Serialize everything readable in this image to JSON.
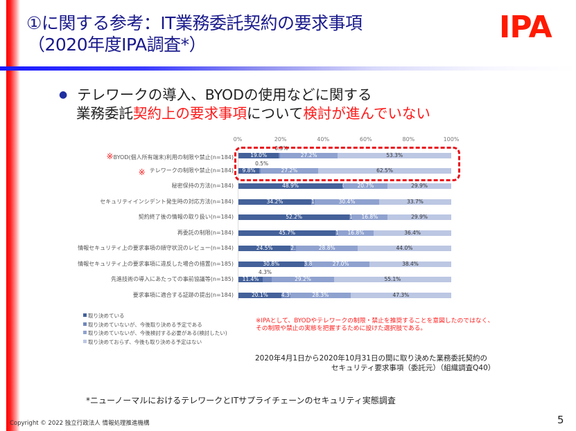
{
  "slide": {
    "title_line1": "①に関する参考：IT業務委託契約の要求事項",
    "title_line2": "（2020年度IPA調査*）",
    "logo": "IPA",
    "bullet": {
      "line1": "テレワークの導入、BYODの使用などに関する",
      "line2_parts": [
        "業務委託",
        "契約上の要求事項",
        "について",
        "検討が進んでいない"
      ]
    },
    "note_line1": "※IPAとして、BYODやテレワークの制限・禁止を推奨することを意図したのではなく、",
    "note_line2": "その制限や禁止の実態を把握するために設けた選択肢である。",
    "caption_line1": "2020年4月1日から2020年10月31日の間に取り決めた業務委託契約の",
    "caption_line2": "セキュリティ要求事項（委託元）（組織調査Q40）",
    "footnote": "*ニューノーマルにおけるテレワークとITサプライチェーンのセキュリティ実態調査",
    "copyright": "Copyright © 2022 独立行政法人 情報処理推進機構",
    "page_number": "5",
    "colors": {
      "accent_red": "#ff1a1a",
      "title_blue": "#1a1a8c",
      "rule_blue": "#1a1aff"
    }
  },
  "chart_data": {
    "type": "bar",
    "orientation": "horizontal-stacked-100",
    "title": "",
    "xlabel": "",
    "ylabel": "",
    "xlim": [
      0,
      100
    ],
    "ticks": [
      "0%",
      "20%",
      "40%",
      "60%",
      "80%",
      "100%"
    ],
    "legend_position": "bottom-left",
    "categories": [
      "BYOD(個人所有端末)利用の制限や禁止(n=184)",
      "テレワークの制限や禁止(n=184)",
      "秘密保持の方法(n=184)",
      "セキュリティインシデント発生時の対応方法(n=184)",
      "契約終了後の情報の取り扱い(n=184)",
      "再委託の制限(n=184)",
      "情報セキュリティ上の要求事項の順守状況のレビュー(n=184)",
      "情報セキュリティ上の要求事項に違反した場合の措置(n=185)",
      "先進技術の導入にあたっての事前協議等(n=185)",
      "要求事項に適合する証跡の提出(n=184)"
    ],
    "marked_categories": [
      0,
      1
    ],
    "series": [
      {
        "name": "取り決めている",
        "color": "#44619a",
        "values": [
          19.0,
          9.8,
          48.9,
          34.2,
          52.2,
          45.7,
          24.5,
          30.8,
          11.4,
          20.1
        ]
      },
      {
        "name": "取り決めていないが、今後取り決める予定である",
        "color": "#6f87bb",
        "values": [
          0.5,
          0.5,
          0.5,
          1.6,
          1.1,
          1.1,
          2.7,
          3.8,
          4.3,
          4.3
        ]
      },
      {
        "name": "取り決めていないが、今後検討する必要がある(検討したい)",
        "color": "#8fa2cf",
        "values": [
          27.2,
          27.2,
          20.7,
          30.4,
          16.8,
          16.8,
          28.8,
          27.0,
          29.2,
          28.3
        ]
      },
      {
        "name": "取り決めておらず、今後も取り決める予定はない",
        "color": "#bcc7e3",
        "values": [
          53.3,
          62.5,
          29.9,
          33.7,
          29.9,
          36.4,
          44.0,
          38.4,
          55.1,
          47.3
        ]
      }
    ],
    "labels_above": [
      {
        "row": 0,
        "text": "0.5%"
      },
      {
        "row": 1,
        "text": "0.5%"
      },
      {
        "row": 8,
        "text": "4.3%"
      }
    ],
    "annotation": "red dashed box highlighting first two rows"
  }
}
